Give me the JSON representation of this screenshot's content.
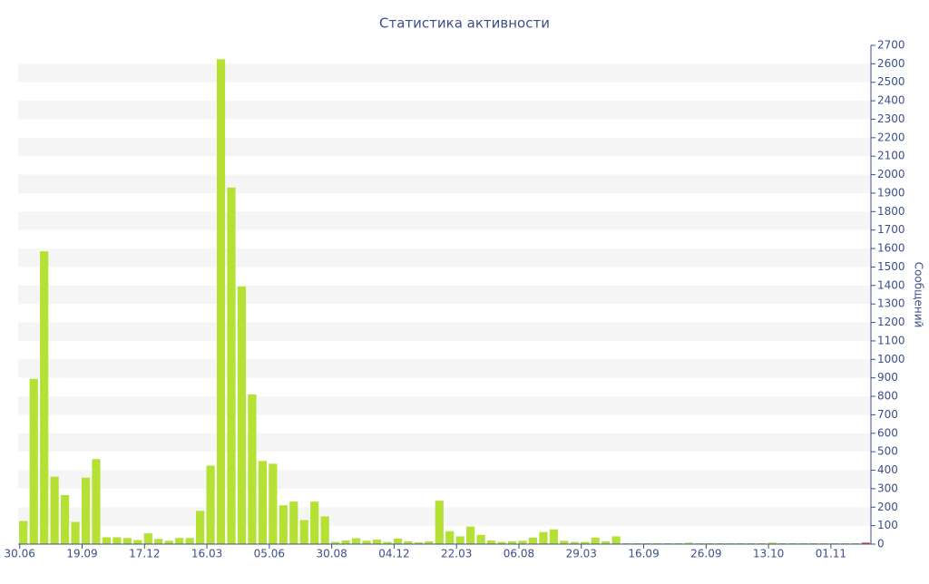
{
  "chart_data": {
    "type": "bar",
    "title": "Статистика активности",
    "y_label": "Сообщений",
    "categories": [
      "30.06",
      null,
      null,
      null,
      null,
      null,
      "19.09",
      null,
      null,
      null,
      null,
      null,
      "17.12",
      null,
      null,
      null,
      null,
      null,
      "16.03",
      null,
      null,
      null,
      null,
      null,
      "05.06",
      null,
      null,
      null,
      null,
      null,
      "30.08",
      null,
      null,
      null,
      null,
      null,
      "04.12",
      null,
      null,
      null,
      null,
      null,
      "22.03",
      null,
      null,
      null,
      null,
      null,
      "06.08",
      null,
      null,
      null,
      null,
      null,
      "29.03",
      null,
      null,
      null,
      null,
      null,
      "16.09",
      null,
      null,
      null,
      null,
      null,
      "26.09",
      null,
      null,
      null,
      null,
      null,
      "13.10",
      null,
      null,
      null,
      null,
      null,
      "01.11",
      null,
      null,
      null
    ],
    "values": [
      125,
      895,
      1585,
      365,
      265,
      120,
      360,
      460,
      37,
      37,
      33,
      22,
      58,
      28,
      18,
      33,
      33,
      180,
      425,
      2625,
      1930,
      1395,
      810,
      450,
      435,
      210,
      230,
      130,
      230,
      150,
      12,
      20,
      32,
      18,
      25,
      12,
      30,
      15,
      10,
      15,
      235,
      70,
      42,
      95,
      50,
      20,
      12,
      15,
      18,
      35,
      65,
      80,
      18,
      12,
      12,
      35,
      15,
      42,
      5,
      5,
      5,
      5,
      5,
      5,
      8,
      5,
      5,
      5,
      5,
      5,
      5,
      5,
      8,
      5,
      5,
      5,
      5,
      5,
      5,
      5,
      5,
      8
    ],
    "color": "#b5e034",
    "last_color": "#e0403a",
    "ylim": [
      0,
      2700
    ],
    "yticks": [
      0,
      100,
      200,
      300,
      400,
      500,
      600,
      700,
      800,
      900,
      1000,
      1100,
      1200,
      1300,
      1400,
      1500,
      1600,
      1700,
      1800,
      1900,
      2000,
      2100,
      2200,
      2300,
      2400,
      2500,
      2600,
      2700
    ],
    "striped_grid": true
  }
}
